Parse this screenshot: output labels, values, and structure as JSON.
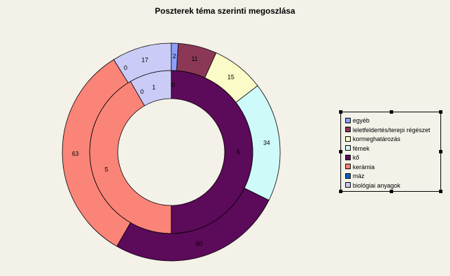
{
  "chart_data": {
    "type": "doughnut",
    "title": "Poszterek téma szerinti megoszlása",
    "categories": [
      "egyéb",
      "leletfeldertés/terepi régészet",
      "kormeghatározás",
      "fémek",
      "kő",
      "kerámia",
      "máz",
      "biológiai anyagok"
    ],
    "colors": [
      "#8c9ff7",
      "#8b3856",
      "#fbfbc7",
      "#cffafa",
      "#5c0a5a",
      "#fa8478",
      "#0a5fc0",
      "#cbcbf7"
    ],
    "series": [
      {
        "ring": "outer",
        "values": [
          2,
          11,
          15,
          34,
          50,
          63,
          0,
          17
        ]
      },
      {
        "ring": "inner",
        "values": [
          0,
          0,
          0,
          0,
          6,
          5,
          0,
          1
        ]
      }
    ],
    "legend_position": "right"
  }
}
